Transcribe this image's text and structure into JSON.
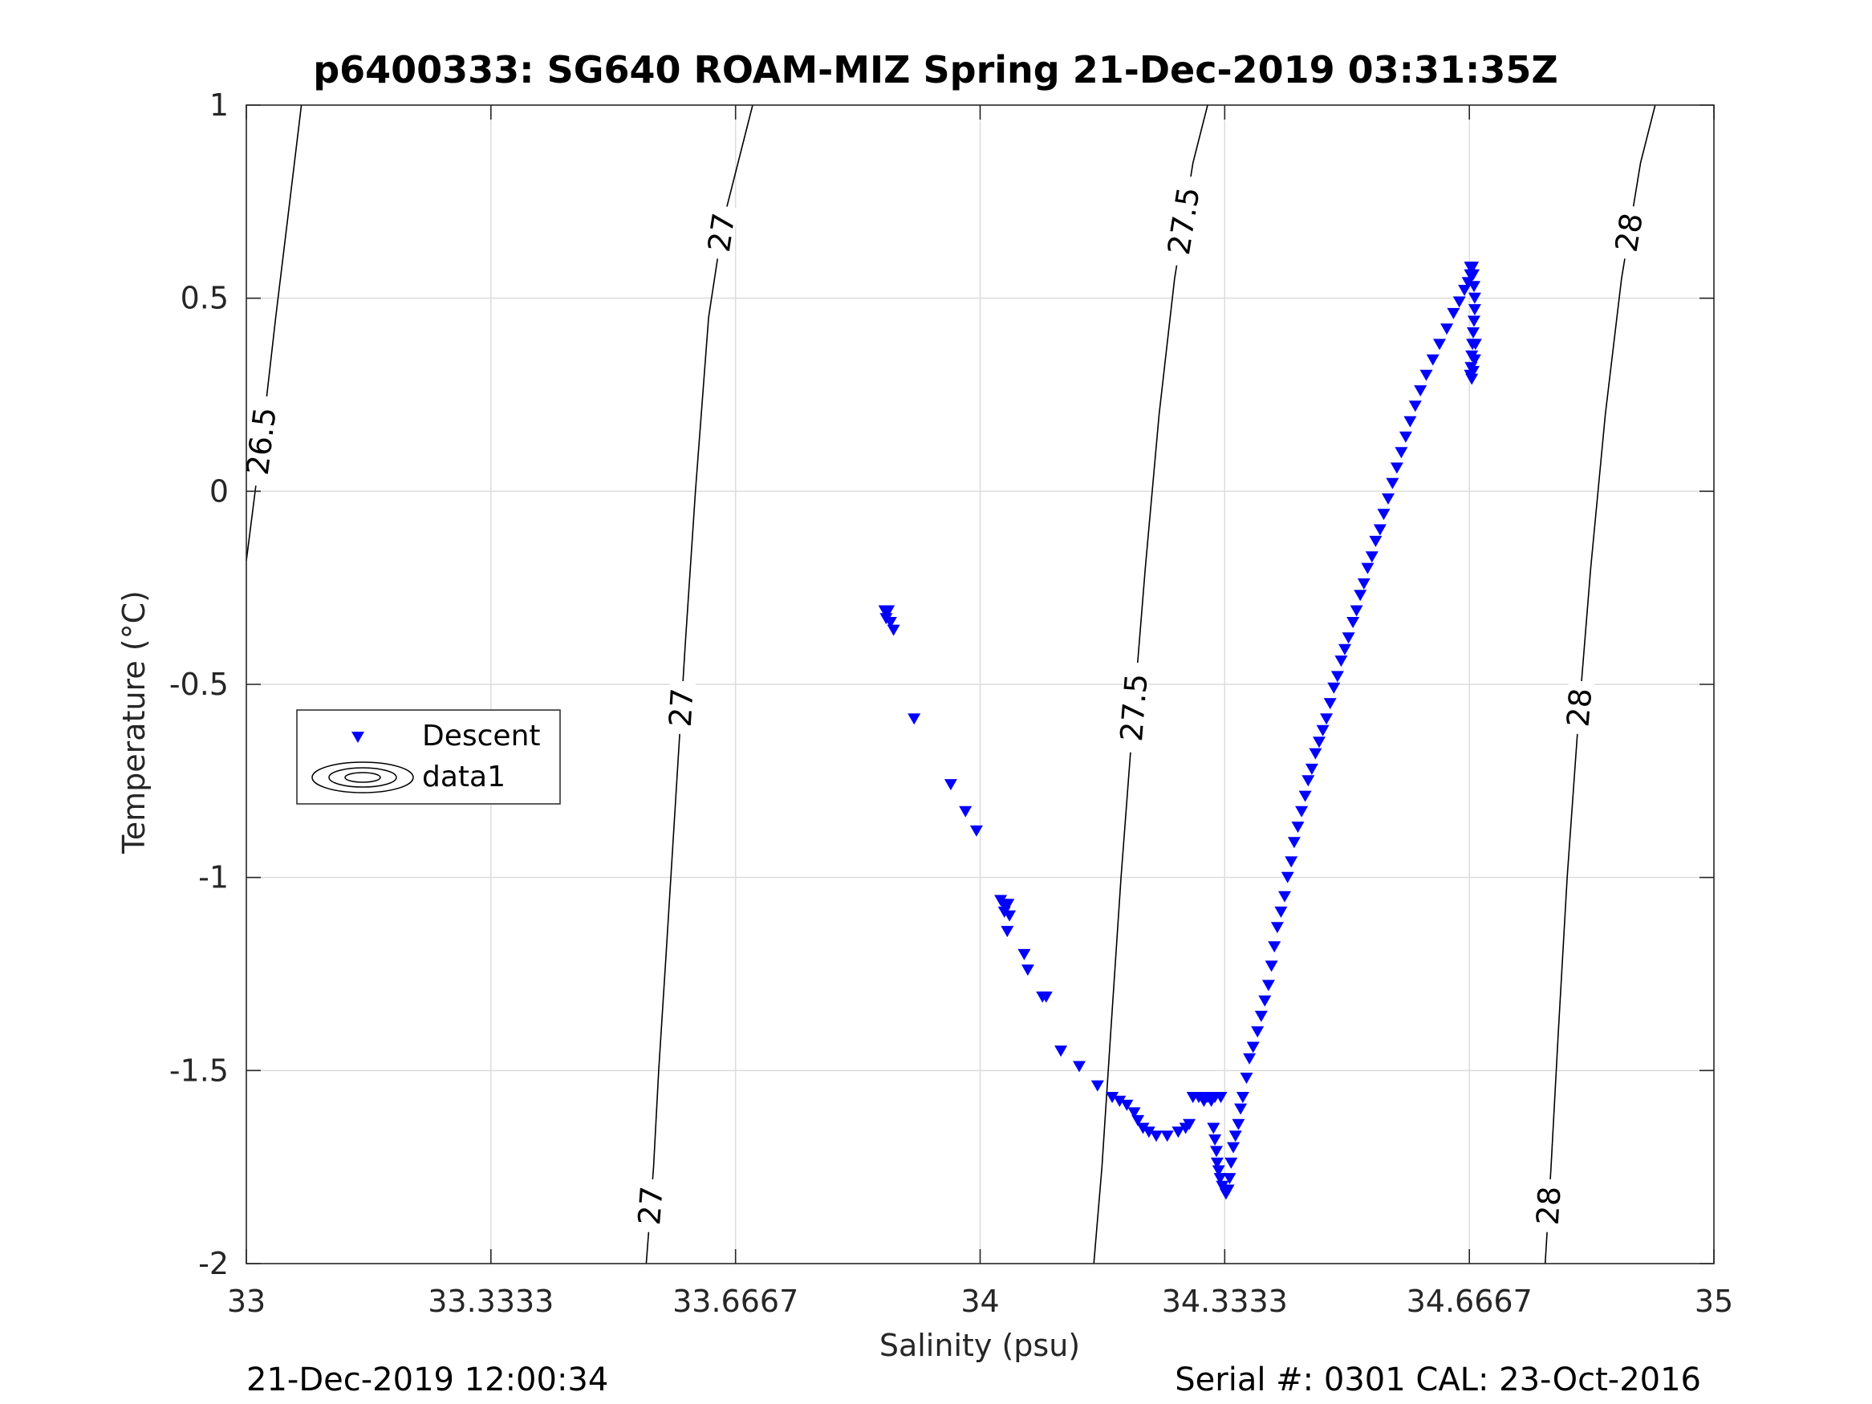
{
  "chart_data": {
    "type": "scatter",
    "title": "p6400333: SG640 ROAM-MIZ Spring 21-Dec-2019 03:31:35Z",
    "xlabel": "Salinity (psu)",
    "ylabel": "Temperature (°C)",
    "xlim": [
      33,
      35
    ],
    "ylim": [
      -2,
      1
    ],
    "xticks": [
      33,
      33.3333,
      33.6667,
      34,
      34.3333,
      34.6667,
      35
    ],
    "xtick_labels": [
      "33",
      "33.3333",
      "33.6667",
      "34",
      "34.3333",
      "34.6667",
      "35"
    ],
    "yticks": [
      -2,
      -1.5,
      -1,
      -0.5,
      0,
      0.5,
      1
    ],
    "ytick_labels": [
      "-2",
      "-1.5",
      "-1",
      "-0.5",
      "0",
      "0.5",
      "1"
    ],
    "grid": true,
    "legend": {
      "placement": "left",
      "entries": [
        {
          "label": "Descent",
          "marker": "triangle-down",
          "color": "#0000ff"
        },
        {
          "label": "data1",
          "marker": "contour",
          "color": "#000000"
        }
      ]
    },
    "series": [
      {
        "name": "Descent",
        "marker": "triangle-down",
        "color": "#0000ff",
        "points": [
          [
            33.87,
            -0.31
          ],
          [
            33.875,
            -0.31
          ],
          [
            33.872,
            -0.33
          ],
          [
            33.878,
            -0.34
          ],
          [
            33.882,
            -0.36
          ],
          [
            33.91,
            -0.59
          ],
          [
            33.96,
            -0.76
          ],
          [
            33.98,
            -0.83
          ],
          [
            33.995,
            -0.88
          ],
          [
            34.028,
            -1.06
          ],
          [
            34.032,
            -1.07
          ],
          [
            34.038,
            -1.07
          ],
          [
            34.033,
            -1.09
          ],
          [
            34.04,
            -1.1
          ],
          [
            34.037,
            -1.14
          ],
          [
            34.06,
            -1.2
          ],
          [
            34.065,
            -1.24
          ],
          [
            34.085,
            -1.31
          ],
          [
            34.09,
            -1.31
          ],
          [
            34.11,
            -1.45
          ],
          [
            34.135,
            -1.49
          ],
          [
            34.16,
            -1.54
          ],
          [
            34.18,
            -1.57
          ],
          [
            34.19,
            -1.58
          ],
          [
            34.2,
            -1.59
          ],
          [
            34.21,
            -1.61
          ],
          [
            34.215,
            -1.63
          ],
          [
            34.222,
            -1.65
          ],
          [
            34.23,
            -1.66
          ],
          [
            34.24,
            -1.67
          ],
          [
            34.255,
            -1.67
          ],
          [
            34.27,
            -1.66
          ],
          [
            34.28,
            -1.65
          ],
          [
            34.285,
            -1.64
          ],
          [
            34.29,
            -1.57
          ],
          [
            34.298,
            -1.57
          ],
          [
            34.305,
            -1.58
          ],
          [
            34.31,
            -1.57
          ],
          [
            34.315,
            -1.58
          ],
          [
            34.32,
            -1.57
          ],
          [
            34.328,
            -1.57
          ],
          [
            34.318,
            -1.65
          ],
          [
            34.32,
            -1.68
          ],
          [
            34.322,
            -1.71
          ],
          [
            34.323,
            -1.74
          ],
          [
            34.325,
            -1.76
          ],
          [
            34.327,
            -1.78
          ],
          [
            34.33,
            -1.8
          ],
          [
            34.333,
            -1.81
          ],
          [
            34.335,
            -1.82
          ],
          [
            34.338,
            -1.81
          ],
          [
            34.34,
            -1.78
          ],
          [
            34.342,
            -1.74
          ],
          [
            34.345,
            -1.7
          ],
          [
            34.348,
            -1.67
          ],
          [
            34.352,
            -1.64
          ],
          [
            34.355,
            -1.6
          ],
          [
            34.358,
            -1.57
          ],
          [
            34.363,
            -1.52
          ],
          [
            34.367,
            -1.47
          ],
          [
            34.372,
            -1.44
          ],
          [
            34.378,
            -1.4
          ],
          [
            34.383,
            -1.36
          ],
          [
            34.388,
            -1.32
          ],
          [
            34.393,
            -1.28
          ],
          [
            34.397,
            -1.23
          ],
          [
            34.401,
            -1.18
          ],
          [
            34.405,
            -1.13
          ],
          [
            34.41,
            -1.09
          ],
          [
            34.415,
            -1.05
          ],
          [
            34.419,
            -1.0
          ],
          [
            34.424,
            -0.96
          ],
          [
            34.428,
            -0.91
          ],
          [
            34.433,
            -0.87
          ],
          [
            34.438,
            -0.83
          ],
          [
            34.443,
            -0.79
          ],
          [
            34.447,
            -0.75
          ],
          [
            34.452,
            -0.72
          ],
          [
            34.457,
            -0.68
          ],
          [
            34.462,
            -0.65
          ],
          [
            34.467,
            -0.62
          ],
          [
            34.472,
            -0.59
          ],
          [
            34.477,
            -0.55
          ],
          [
            34.482,
            -0.51
          ],
          [
            34.487,
            -0.48
          ],
          [
            34.492,
            -0.44
          ],
          [
            34.497,
            -0.41
          ],
          [
            34.502,
            -0.38
          ],
          [
            34.508,
            -0.34
          ],
          [
            34.513,
            -0.31
          ],
          [
            34.518,
            -0.27
          ],
          [
            34.523,
            -0.24
          ],
          [
            34.528,
            -0.2
          ],
          [
            34.534,
            -0.17
          ],
          [
            34.539,
            -0.13
          ],
          [
            34.545,
            -0.1
          ],
          [
            34.55,
            -0.06
          ],
          [
            34.556,
            -0.02
          ],
          [
            34.562,
            0.02
          ],
          [
            34.568,
            0.06
          ],
          [
            34.574,
            0.1
          ],
          [
            34.58,
            0.14
          ],
          [
            34.586,
            0.18
          ],
          [
            34.593,
            0.22
          ],
          [
            34.6,
            0.26
          ],
          [
            34.608,
            0.3
          ],
          [
            34.617,
            0.34
          ],
          [
            34.626,
            0.38
          ],
          [
            34.636,
            0.42
          ],
          [
            34.645,
            0.46
          ],
          [
            34.653,
            0.49
          ],
          [
            34.66,
            0.52
          ],
          [
            34.665,
            0.54
          ],
          [
            34.668,
            0.56
          ],
          [
            34.671,
            0.58
          ],
          [
            34.668,
            0.58
          ],
          [
            34.672,
            0.56
          ],
          [
            34.673,
            0.53
          ],
          [
            34.674,
            0.5
          ],
          [
            34.674,
            0.47
          ],
          [
            34.673,
            0.44
          ],
          [
            34.672,
            0.41
          ],
          [
            34.671,
            0.38
          ],
          [
            34.67,
            0.35
          ],
          [
            34.669,
            0.32
          ],
          [
            34.668,
            0.3
          ],
          [
            34.67,
            0.29
          ],
          [
            34.672,
            0.31
          ],
          [
            34.674,
            0.34
          ],
          [
            34.675,
            0.38
          ]
        ]
      }
    ],
    "contours": [
      {
        "level": "26.5",
        "points": [
          [
            33.0,
            -0.18
          ],
          [
            33.012,
            0.0
          ],
          [
            33.025,
            0.2
          ],
          [
            33.04,
            0.45
          ],
          [
            33.056,
            0.7
          ],
          [
            33.075,
            1.0
          ]
        ],
        "labels_at_y": [
          0.13
        ]
      },
      {
        "level": "27",
        "points": [
          [
            33.545,
            -2.0
          ],
          [
            33.555,
            -1.75
          ],
          [
            33.562,
            -1.5
          ],
          [
            33.572,
            -1.2
          ],
          [
            33.585,
            -0.8
          ],
          [
            33.598,
            -0.4
          ],
          [
            33.612,
            0.0
          ],
          [
            33.63,
            0.45
          ],
          [
            33.65,
            0.7
          ],
          [
            33.69,
            1.0
          ]
        ],
        "labels_at_y": [
          -1.85,
          -0.56,
          0.67
        ]
      },
      {
        "level": "27.5",
        "points": [
          [
            34.155,
            -2.0
          ],
          [
            34.166,
            -1.75
          ],
          [
            34.178,
            -1.4
          ],
          [
            34.192,
            -1.0
          ],
          [
            34.208,
            -0.6
          ],
          [
            34.225,
            -0.2
          ],
          [
            34.244,
            0.2
          ],
          [
            34.265,
            0.55
          ],
          [
            34.29,
            0.85
          ],
          [
            34.31,
            1.0
          ]
        ],
        "labels_at_y": [
          -0.56,
          0.7
        ]
      },
      {
        "level": "28",
        "points": [
          [
            34.77,
            -2.0
          ],
          [
            34.778,
            -1.75
          ],
          [
            34.788,
            -1.4
          ],
          [
            34.8,
            -1.0
          ],
          [
            34.815,
            -0.6
          ],
          [
            34.832,
            -0.2
          ],
          [
            34.852,
            0.2
          ],
          [
            34.874,
            0.55
          ],
          [
            34.9,
            0.85
          ],
          [
            34.92,
            1.0
          ]
        ],
        "labels_at_y": [
          -1.85,
          -0.56,
          0.67
        ]
      }
    ]
  },
  "footer": {
    "left": "21-Dec-2019 12:00:34",
    "right": "Serial #: 0301  CAL: 23-Oct-2016"
  }
}
